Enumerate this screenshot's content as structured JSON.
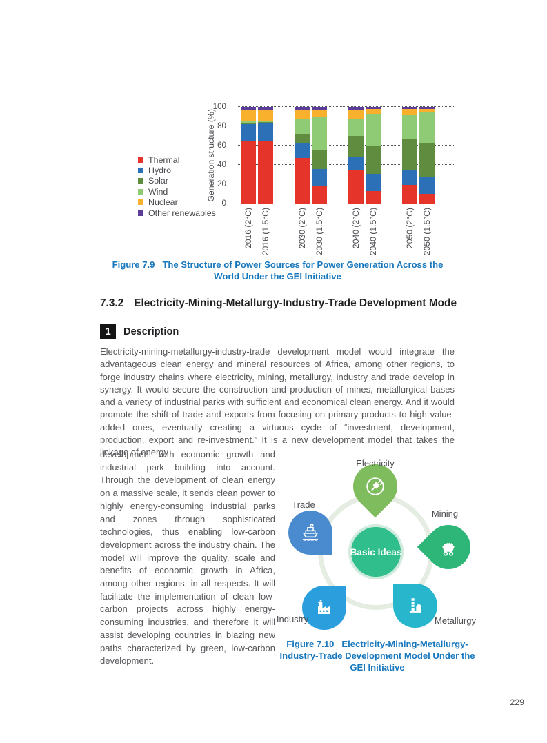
{
  "page_number": "229",
  "figure9": {
    "label": "Figure 7.9",
    "caption": "The Structure of Power Sources for Power Generation Across the World Under the GEI Initiative"
  },
  "section": {
    "number": "7.3.2",
    "title": "Electricity-Mining-Metallurgy-Industry-Trade Development Mode"
  },
  "description": {
    "badge": "1",
    "label": "Description"
  },
  "paragraphs": {
    "intro": "Electricity-mining-metallurgy-industry-trade development model would integrate the advantageous clean energy and mineral resources of Africa, among other regions, to forge industry chains where electricity, mining, metallurgy, industry and trade develop in synergy. It would secure the construction and production of mines, metallurgical bases and a variety of industrial parks with sufficient and economical clean energy. And it would promote the shift of trade and exports from focusing on primary products to high value-added ones, eventually creating a virtuous cycle of “investment, development, production, export and re-investment.” It is a new development model that takes the linkage of energy",
    "column": "development with economic growth and industrial park building into account. Through the development of clean energy on a massive scale, it sends clean power to highly energy-consuming industrial parks and zones through sophisticated technologies, thus enabling low-carbon development across the industry chain. The model will improve the quality, scale and benefits of economic growth in Africa, among other regions, in all respects. It will facilitate the implementation of clean low-carbon projects across highly energy-consuming industries, and therefore it will assist developing countries in blazing new paths characterized by green, low-carbon development."
  },
  "chart_data": {
    "type": "bar",
    "stacked": true,
    "title": "",
    "xlabel": "",
    "ylabel": "Generation structure (%)",
    "ylim": [
      0,
      100
    ],
    "yticks": [
      0,
      20,
      40,
      60,
      80,
      100
    ],
    "grid": "dotted horizontal",
    "legend_position": "left",
    "categories": [
      "2016 (2°C)",
      "2016 (1.5°C)",
      "2030 (2°C)",
      "2030 (1.5°C)",
      "2040 (2°C)",
      "2040 (1.5°C)",
      "2050 (2°C)",
      "2050 (1.5°C)"
    ],
    "series": [
      {
        "name": "Thermal",
        "color": "#e5352b",
        "values": [
          65,
          65,
          47,
          18,
          34,
          13,
          19,
          10
        ]
      },
      {
        "name": "Hydro",
        "color": "#2c70b7",
        "values": [
          17,
          18,
          15,
          18,
          14,
          18,
          16,
          17
        ]
      },
      {
        "name": "Solar",
        "color": "#5f8c3f",
        "values": [
          1,
          1,
          10,
          19,
          22,
          28,
          32,
          35
        ]
      },
      {
        "name": "Wind",
        "color": "#8fca74",
        "values": [
          3,
          2,
          15,
          35,
          18,
          34,
          25,
          33
        ]
      },
      {
        "name": "Nuclear",
        "color": "#f9b02c",
        "values": [
          11,
          11,
          10,
          7,
          9,
          5,
          6,
          3
        ]
      },
      {
        "name": "Other renewables",
        "color": "#5c3d97",
        "values": [
          3,
          3,
          3,
          3,
          3,
          2,
          2,
          2
        ]
      }
    ]
  },
  "diagram": {
    "center_label": "Basic Ideas",
    "center_color": "#2fbe8c",
    "nodes": [
      {
        "label": "Electricity",
        "color": "#7fbc5d"
      },
      {
        "label": "Mining",
        "color": "#2eb578"
      },
      {
        "label": "Metallurgy",
        "color": "#27b6cc"
      },
      {
        "label": "Industry",
        "color": "#2b9fde"
      },
      {
        "label": "Trade",
        "color": "#4a8bd0"
      }
    ]
  },
  "figure10": {
    "label": "Figure 7.10",
    "caption": "Electricity-Mining-Metallurgy-Industry-Trade Development Model Under the GEI Initiative"
  }
}
